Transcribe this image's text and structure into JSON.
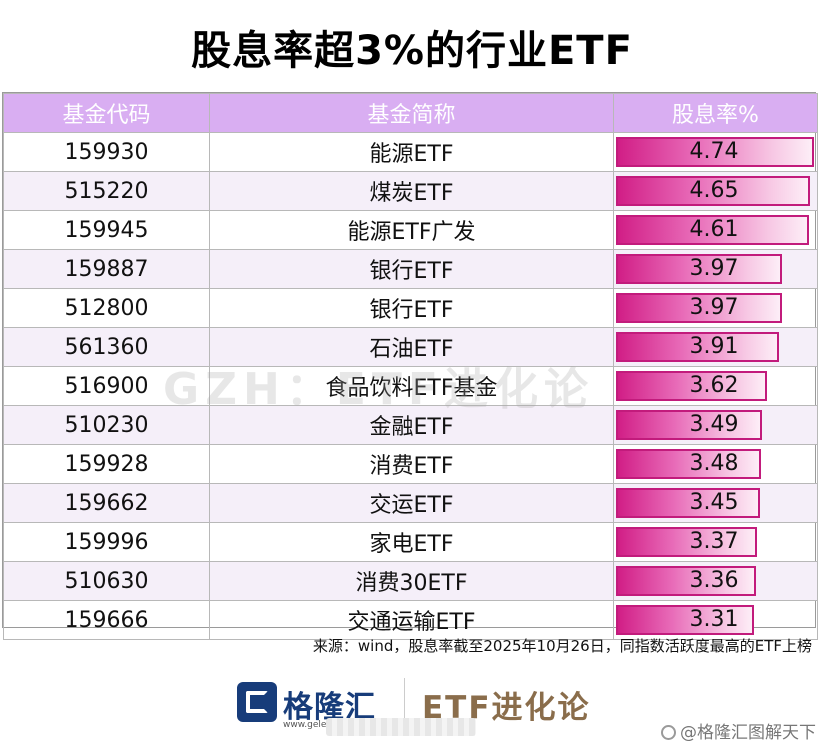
{
  "title": "股息率超3%的行业ETF",
  "table": {
    "headers": [
      "基金代码",
      "基金简称",
      "股息率%"
    ],
    "rows": [
      {
        "code": "159930",
        "name": "能源ETF",
        "rate": "4.74"
      },
      {
        "code": "515220",
        "name": "煤炭ETF",
        "rate": "4.65"
      },
      {
        "code": "159945",
        "name": "能源ETF广发",
        "rate": "4.61"
      },
      {
        "code": "159887",
        "name": "银行ETF",
        "rate": "3.97"
      },
      {
        "code": "512800",
        "name": "银行ETF",
        "rate": "3.97"
      },
      {
        "code": "561360",
        "name": "石油ETF",
        "rate": "3.91"
      },
      {
        "code": "516900",
        "name": "食品饮料ETF基金",
        "rate": "3.62"
      },
      {
        "code": "510230",
        "name": "金融ETF",
        "rate": "3.49"
      },
      {
        "code": "159928",
        "name": "消费ETF",
        "rate": "3.48"
      },
      {
        "code": "159662",
        "name": "交运ETF",
        "rate": "3.45"
      },
      {
        "code": "159996",
        "name": "家电ETF",
        "rate": "3.37"
      },
      {
        "code": "510630",
        "name": "消费30ETF",
        "rate": "3.36"
      },
      {
        "code": "159666",
        "name": "交通运输ETF",
        "rate": "3.31"
      }
    ]
  },
  "watermark": "GZH：ETF进化论",
  "source": "来源：wind，股息率截至2025年10月26日，同指数活跃度最高的ETF上榜",
  "footer": {
    "logo_text": "格隆汇",
    "logo_sub": "www.gele...",
    "brand": "ETF进化论",
    "weibo": "@格隆汇图解天下"
  },
  "colors": {
    "header_bg": "#d9aef2",
    "bar_border": "#c21b7c",
    "bar_fill": "#d11e86",
    "logo_blue": "#173c7a",
    "brand_brown": "#8a6d4b"
  }
}
